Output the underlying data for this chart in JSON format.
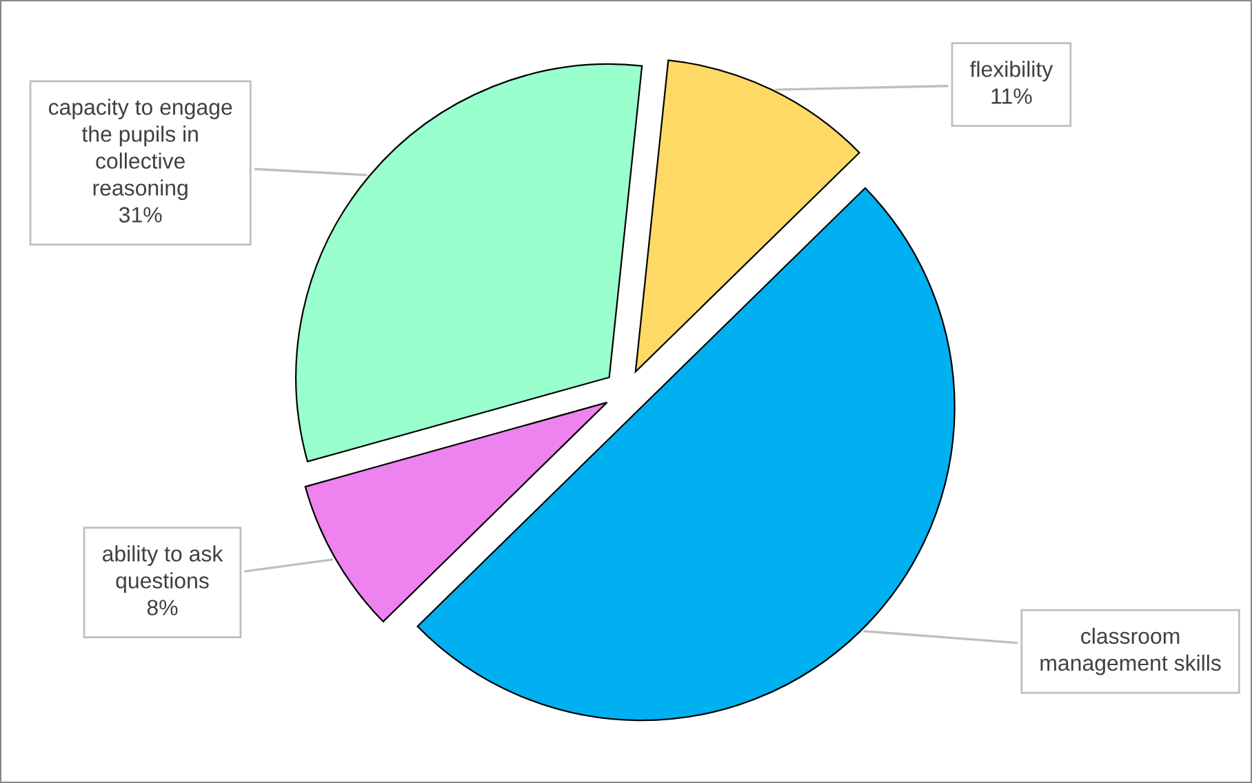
{
  "chart_data": {
    "type": "pie",
    "categories": [
      "flexibility",
      "classroom management skills",
      "ability to ask questions",
      "capacity to engage the pupils in collective reasoning"
    ],
    "values": [
      11,
      50,
      8,
      31
    ],
    "colors": [
      "#ffd966",
      "#00b0f0",
      "#ee82ee",
      "#99ffcc"
    ],
    "value_labels": [
      "11%",
      null,
      "8%",
      "31%"
    ],
    "legend": false
  }
}
